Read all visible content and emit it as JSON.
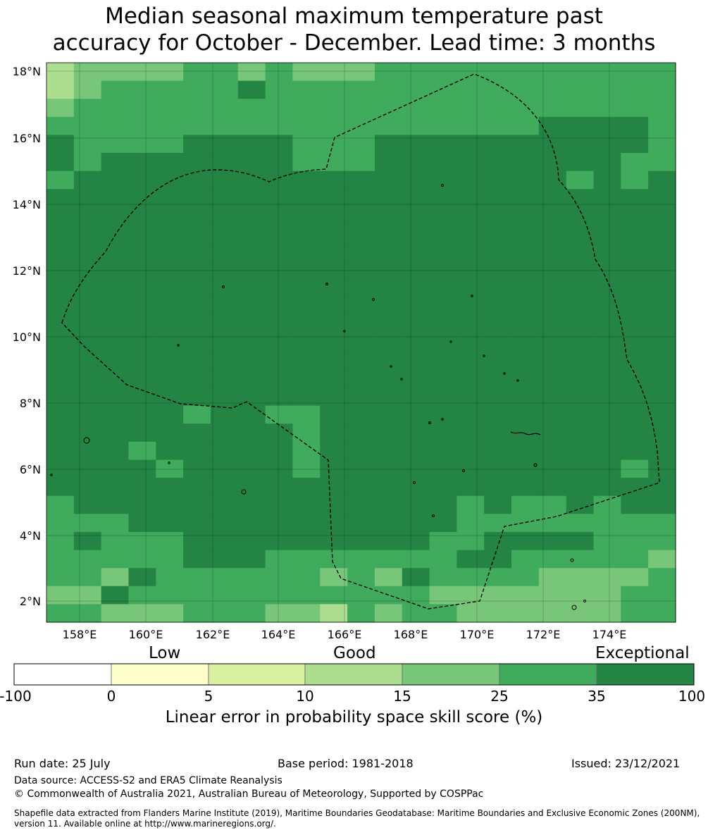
{
  "title_line1": "Median seasonal maximum temperature past",
  "title_line2": "accuracy for October - December. Lead time: 3 months",
  "map": {
    "lat_labels": [
      "18°N",
      "16°N",
      "14°N",
      "12°N",
      "10°N",
      "8°N",
      "6°N",
      "4°N",
      "2°N"
    ],
    "lon_labels": [
      "158°E",
      "160°E",
      "162°E",
      "164°E",
      "166°E",
      "168°E",
      "170°E",
      "172°E",
      "174°E"
    ],
    "region_outline": "dashed exclusive economic zone boundary",
    "ocean_color": "#238b45"
  },
  "colorbar": {
    "category_low": "Low",
    "category_good": "Good",
    "category_exceptional": "Exceptional",
    "ticks": [
      "-100",
      "0",
      "5",
      "10",
      "15",
      "25",
      "35",
      "100"
    ],
    "colors": [
      "#ffffff",
      "#ffffcc",
      "#d9f0a3",
      "#addd8e",
      "#78c679",
      "#41ab5d",
      "#238443"
    ],
    "label": "Linear error in probability space skill score (%)"
  },
  "footer": {
    "run_date": "Run date: 25 July",
    "base_period": "Base period: 1981-2018",
    "issued": "Issued: 23/12/2021",
    "data_source": "Data source: ACCESS-S2 and ERA5 Climate Reanalysis",
    "copyright": "© Commonwealth of Australia 2021, Australian Bureau of Meteorology, Supported by COSPPac",
    "shapefile_line1": "Shapefile data extracted from Flanders Marine Institute (2019), Maritime Boundaries Geodatabase: Maritime Boundaries and Exclusive Economic Zones (200NM),",
    "shapefile_line2": "version 11. Available online at http://www.marineregions.org/."
  }
}
